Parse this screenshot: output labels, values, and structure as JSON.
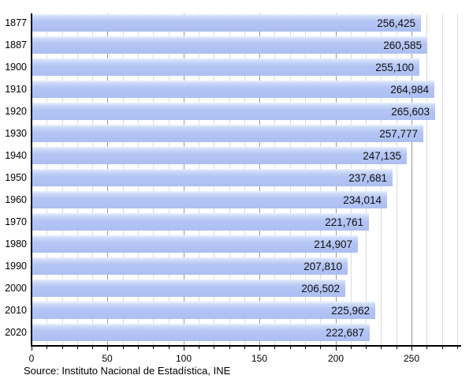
{
  "chart_data": {
    "type": "bar",
    "orientation": "horizontal",
    "title": "",
    "xlabel": "",
    "ylabel": "",
    "categories": [
      "1877",
      "1887",
      "1900",
      "1910",
      "1920",
      "1930",
      "1940",
      "1950",
      "1960",
      "1970",
      "1980",
      "1990",
      "2000",
      "2010",
      "2020"
    ],
    "values": [
      256425,
      260585,
      255100,
      264984,
      265603,
      257777,
      247135,
      237681,
      234014,
      221761,
      214907,
      207810,
      206502,
      225962,
      222687
    ],
    "value_labels": [
      "256,425",
      "260,585",
      "255,100",
      "264,984",
      "265,603",
      "257,777",
      "247,135",
      "237,681",
      "234,014",
      "221,761",
      "214,907",
      "207,810",
      "206,502",
      "225,962",
      "222,687"
    ],
    "x_axis": {
      "tick_labels": [
        "0",
        "50",
        "100",
        "150",
        "200",
        "250"
      ],
      "major_tick_values": [
        0,
        50,
        100,
        150,
        200,
        250
      ],
      "minor_tick_step": 10,
      "max_gridline_value": 280,
      "unit": "thousands"
    },
    "xlim": [
      0,
      283
    ],
    "grid": true,
    "legend": "none",
    "source": "Source: Instituto Nacional de Estadística, INE",
    "colors": {
      "bar_fill": "#b0c2f2",
      "bar_highlight": "#eaf1fc",
      "grid_minor": "#dcdcdc",
      "grid_major": "#999999",
      "axis": "#000000",
      "text": "#000000"
    }
  }
}
